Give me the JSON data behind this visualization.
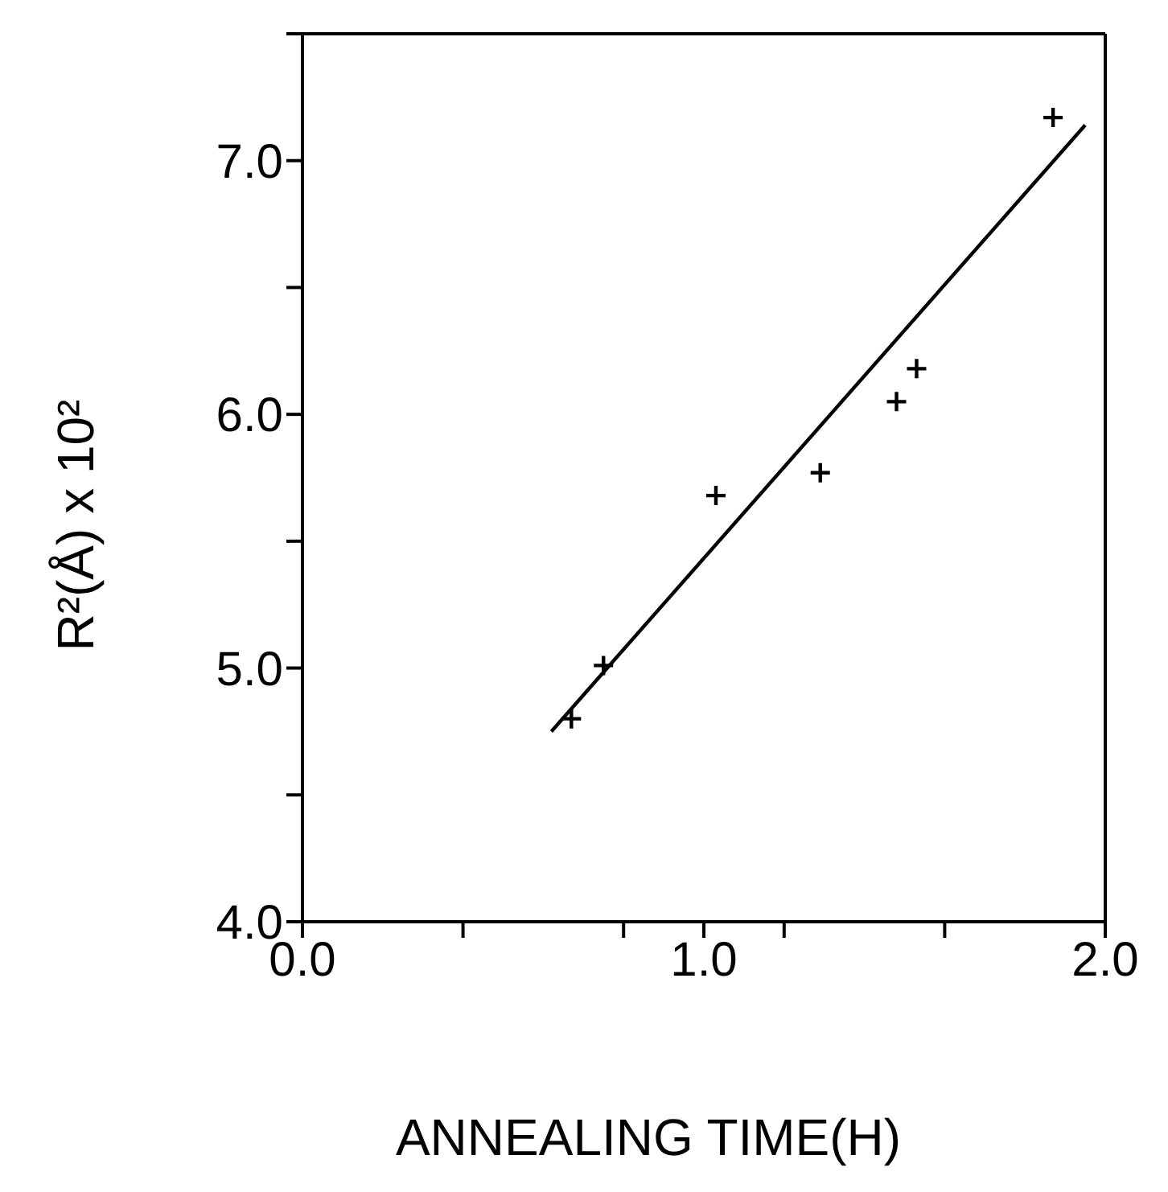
{
  "chart_data": {
    "type": "scatter",
    "xlabel": "ANNEALING TIME(H)",
    "ylabel": "R²(Å) x 10²",
    "xlim": [
      0,
      2
    ],
    "xticks": [
      {
        "value": 0,
        "label": "0.0"
      },
      {
        "value": 0.4,
        "label": null
      },
      {
        "value": 0.8,
        "label": null
      },
      {
        "value": 1,
        "label": "1.0"
      },
      {
        "value": 1.2,
        "label": null
      },
      {
        "value": 1.6,
        "label": null
      },
      {
        "value": 2,
        "label": "2.0"
      }
    ],
    "ylim": [
      4,
      7.5
    ],
    "yticks": [
      {
        "value": 4,
        "label": "4.0"
      },
      {
        "value": 4.5,
        "label": null
      },
      {
        "value": 5,
        "label": "5.0"
      },
      {
        "value": 5.5,
        "label": null
      },
      {
        "value": 6,
        "label": "6.0"
      },
      {
        "value": 6.5,
        "label": null
      },
      {
        "value": 7,
        "label": "7.0"
      },
      {
        "value": 7.5,
        "label": null
      }
    ],
    "series": [
      {
        "marker": "cross",
        "color": "#000000",
        "x": [
          0.67,
          0.75,
          1.03,
          1.29,
          1.48,
          1.53,
          1.87
        ],
        "values": [
          4.8,
          5.01,
          5.68,
          5.77,
          6.05,
          6.18,
          7.17
        ]
      },
      {
        "type": "line",
        "marker": "none",
        "color": "#000000",
        "x": [
          0.62,
          1.95
        ],
        "values": [
          4.75,
          7.14
        ]
      }
    ]
  }
}
